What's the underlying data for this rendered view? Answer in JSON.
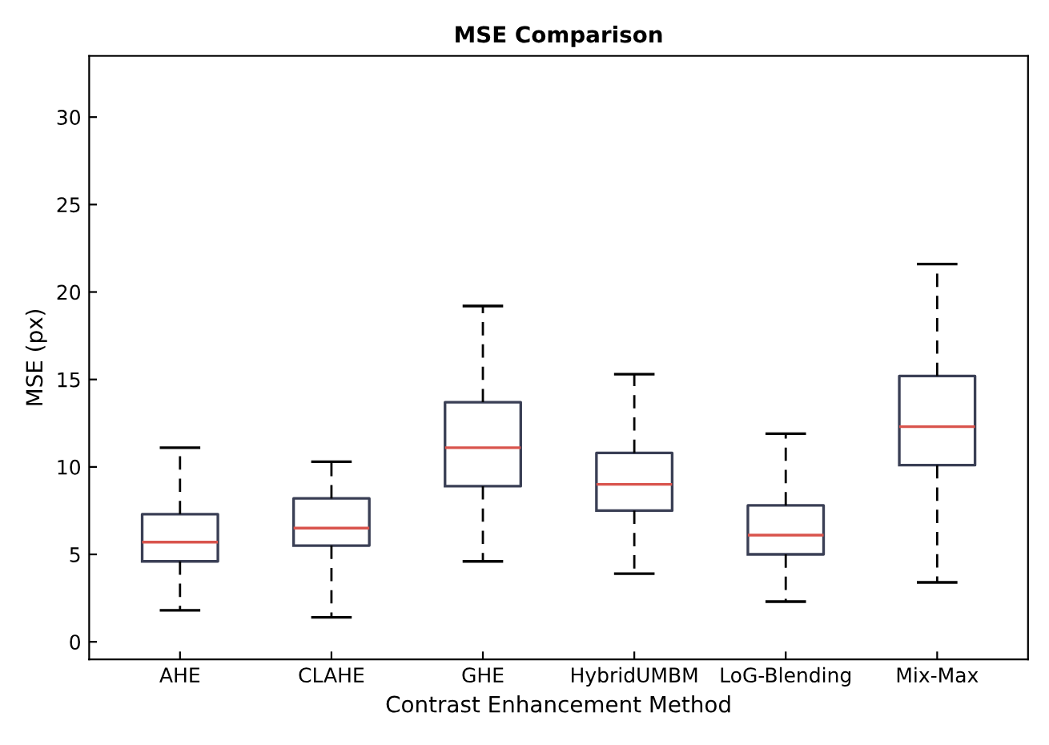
{
  "chart_data": {
    "type": "box",
    "title": "MSE Comparison",
    "xlabel": "Contrast Enhancement Method",
    "ylabel": "MSE (px)",
    "categories": [
      "AHE",
      "CLAHE",
      "GHE",
      "HybridUMBM",
      "LoG-Blending",
      "Mix-Max"
    ],
    "boxes": [
      {
        "low": 1.8,
        "q1": 4.6,
        "median": 5.7,
        "q3": 7.3,
        "high": 11.1
      },
      {
        "low": 1.4,
        "q1": 5.5,
        "median": 6.5,
        "q3": 8.2,
        "high": 10.3
      },
      {
        "low": 4.6,
        "q1": 8.9,
        "median": 11.1,
        "q3": 13.7,
        "high": 19.2
      },
      {
        "low": 3.9,
        "q1": 7.5,
        "median": 9.0,
        "q3": 10.8,
        "high": 15.3
      },
      {
        "low": 2.3,
        "q1": 5.0,
        "median": 6.1,
        "q3": 7.8,
        "high": 11.9
      },
      {
        "low": 3.4,
        "q1": 10.1,
        "median": 12.3,
        "q3": 15.2,
        "high": 21.6
      }
    ],
    "color": "#3a3f55",
    "line_style": "dashed",
    "ylim": [
      -1,
      33.5
    ],
    "yticks": [
      0,
      5,
      10,
      15,
      20,
      25,
      30
    ],
    "grid": false,
    "legend": false
  }
}
